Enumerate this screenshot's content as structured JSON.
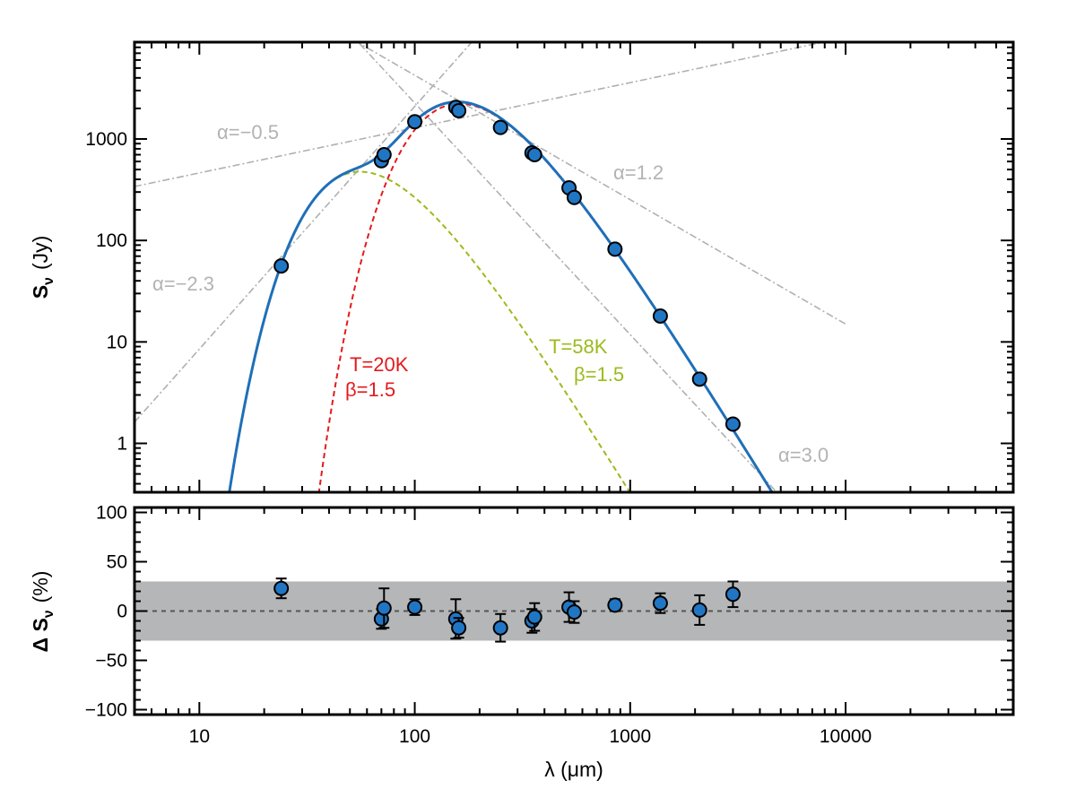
{
  "chart_data": [
    {
      "type": "line",
      "panel": "top",
      "title": "",
      "ylabel_main": "S",
      "ylabel_sub": "ν",
      "ylabel_unit": "(Jy)",
      "xscale": "log",
      "yscale": "log",
      "xlim": [
        5,
        60000
      ],
      "ylim": [
        0.33,
        9000
      ],
      "yticks": [
        1,
        10,
        100,
        1000
      ],
      "ytick_labels": [
        "1",
        "10",
        "100",
        "1000"
      ],
      "data_points": [
        {
          "x": 24,
          "y": 56
        },
        {
          "x": 70,
          "y": 610
        },
        {
          "x": 72,
          "y": 700
        },
        {
          "x": 100,
          "y": 1480
        },
        {
          "x": 155,
          "y": 2050
        },
        {
          "x": 160,
          "y": 1900
        },
        {
          "x": 250,
          "y": 1300
        },
        {
          "x": 350,
          "y": 730
        },
        {
          "x": 360,
          "y": 700
        },
        {
          "x": 520,
          "y": 330
        },
        {
          "x": 550,
          "y": 265
        },
        {
          "x": 850,
          "y": 82
        },
        {
          "x": 1380,
          "y": 18
        },
        {
          "x": 2100,
          "y": 4.3
        },
        {
          "x": 3000,
          "y": 1.55
        }
      ],
      "powerlaws": [
        {
          "label": "α=−0.5",
          "from": [
            5,
            340
          ],
          "to": [
            10000,
            10000
          ]
        },
        {
          "label": "α=−2.3",
          "from": [
            5,
            1.62
          ],
          "to": [
            200,
            11000
          ]
        },
        {
          "label": "α=1.2",
          "from": [
            46,
            11000
          ],
          "to": [
            10000,
            15
          ]
        },
        {
          "label": "α=3.0",
          "from": [
            50,
            11000
          ],
          "to": [
            5000,
            0.3
          ]
        }
      ],
      "annotations": {
        "cold_T": "T=20K",
        "cold_beta": "β=1.5",
        "warm_T": "T=58K",
        "warm_beta": "β=1.5",
        "alpha_m05": "α=−0.5",
        "alpha_m23": "α=−2.3",
        "alpha_12": "α=1.2",
        "alpha_30": "α=3.0"
      },
      "series": [
        {
          "name": "total model",
          "color": "#1f6fb8",
          "style": "solid"
        },
        {
          "name": "cold component T=20K β=1.5",
          "color": "#e41a1c",
          "style": "dashed",
          "T": 20,
          "beta": 1.5,
          "peak_lambda": 150,
          "peak_S": 2200
        },
        {
          "name": "warm component T=58K β=1.5",
          "color": "#9cba1c",
          "style": "dashed",
          "T": 58,
          "beta": 1.5,
          "peak_lambda": 60,
          "peak_S": 470
        },
        {
          "name": "power laws",
          "color": "#b0b0b0",
          "style": "dash-dot"
        }
      ],
      "legend": "none"
    },
    {
      "type": "scatter",
      "panel": "bottom",
      "xlabel": "λ (μm)",
      "ylabel_main": "Δ S",
      "ylabel_sub": "ν",
      "ylabel_unit": "(%)",
      "xscale": "log",
      "xlim": [
        5,
        60000
      ],
      "ylim": [
        -105,
        105
      ],
      "yticks": [
        -100,
        -50,
        0,
        50,
        100
      ],
      "ytick_labels": [
        "−100",
        "−50",
        "0",
        "50",
        "100"
      ],
      "xticks": [
        10,
        100,
        1000,
        10000
      ],
      "xtick_labels": [
        "10",
        "100",
        "1000",
        "10000"
      ],
      "band": [
        -30,
        30
      ],
      "points": [
        {
          "x": 24,
          "y": 23,
          "err": 10
        },
        {
          "x": 70,
          "y": -8,
          "err": 10
        },
        {
          "x": 72,
          "y": 3,
          "err": 20
        },
        {
          "x": 100,
          "y": 4,
          "err": 8
        },
        {
          "x": 155,
          "y": -8,
          "err": 20
        },
        {
          "x": 160,
          "y": -17,
          "err": 10
        },
        {
          "x": 250,
          "y": -17,
          "err": 14
        },
        {
          "x": 350,
          "y": -10,
          "err": 12
        },
        {
          "x": 360,
          "y": -6,
          "err": 14
        },
        {
          "x": 520,
          "y": 4,
          "err": 15
        },
        {
          "x": 550,
          "y": -1,
          "err": 11
        },
        {
          "x": 850,
          "y": 6,
          "err": 6
        },
        {
          "x": 1380,
          "y": 8,
          "err": 10
        },
        {
          "x": 2100,
          "y": 1,
          "err": 15
        },
        {
          "x": 3000,
          "y": 17,
          "err": 13
        }
      ],
      "colors": {
        "point": "#2176c4",
        "band": "#b5b6b8",
        "zero_line": "#555555"
      }
    }
  ]
}
